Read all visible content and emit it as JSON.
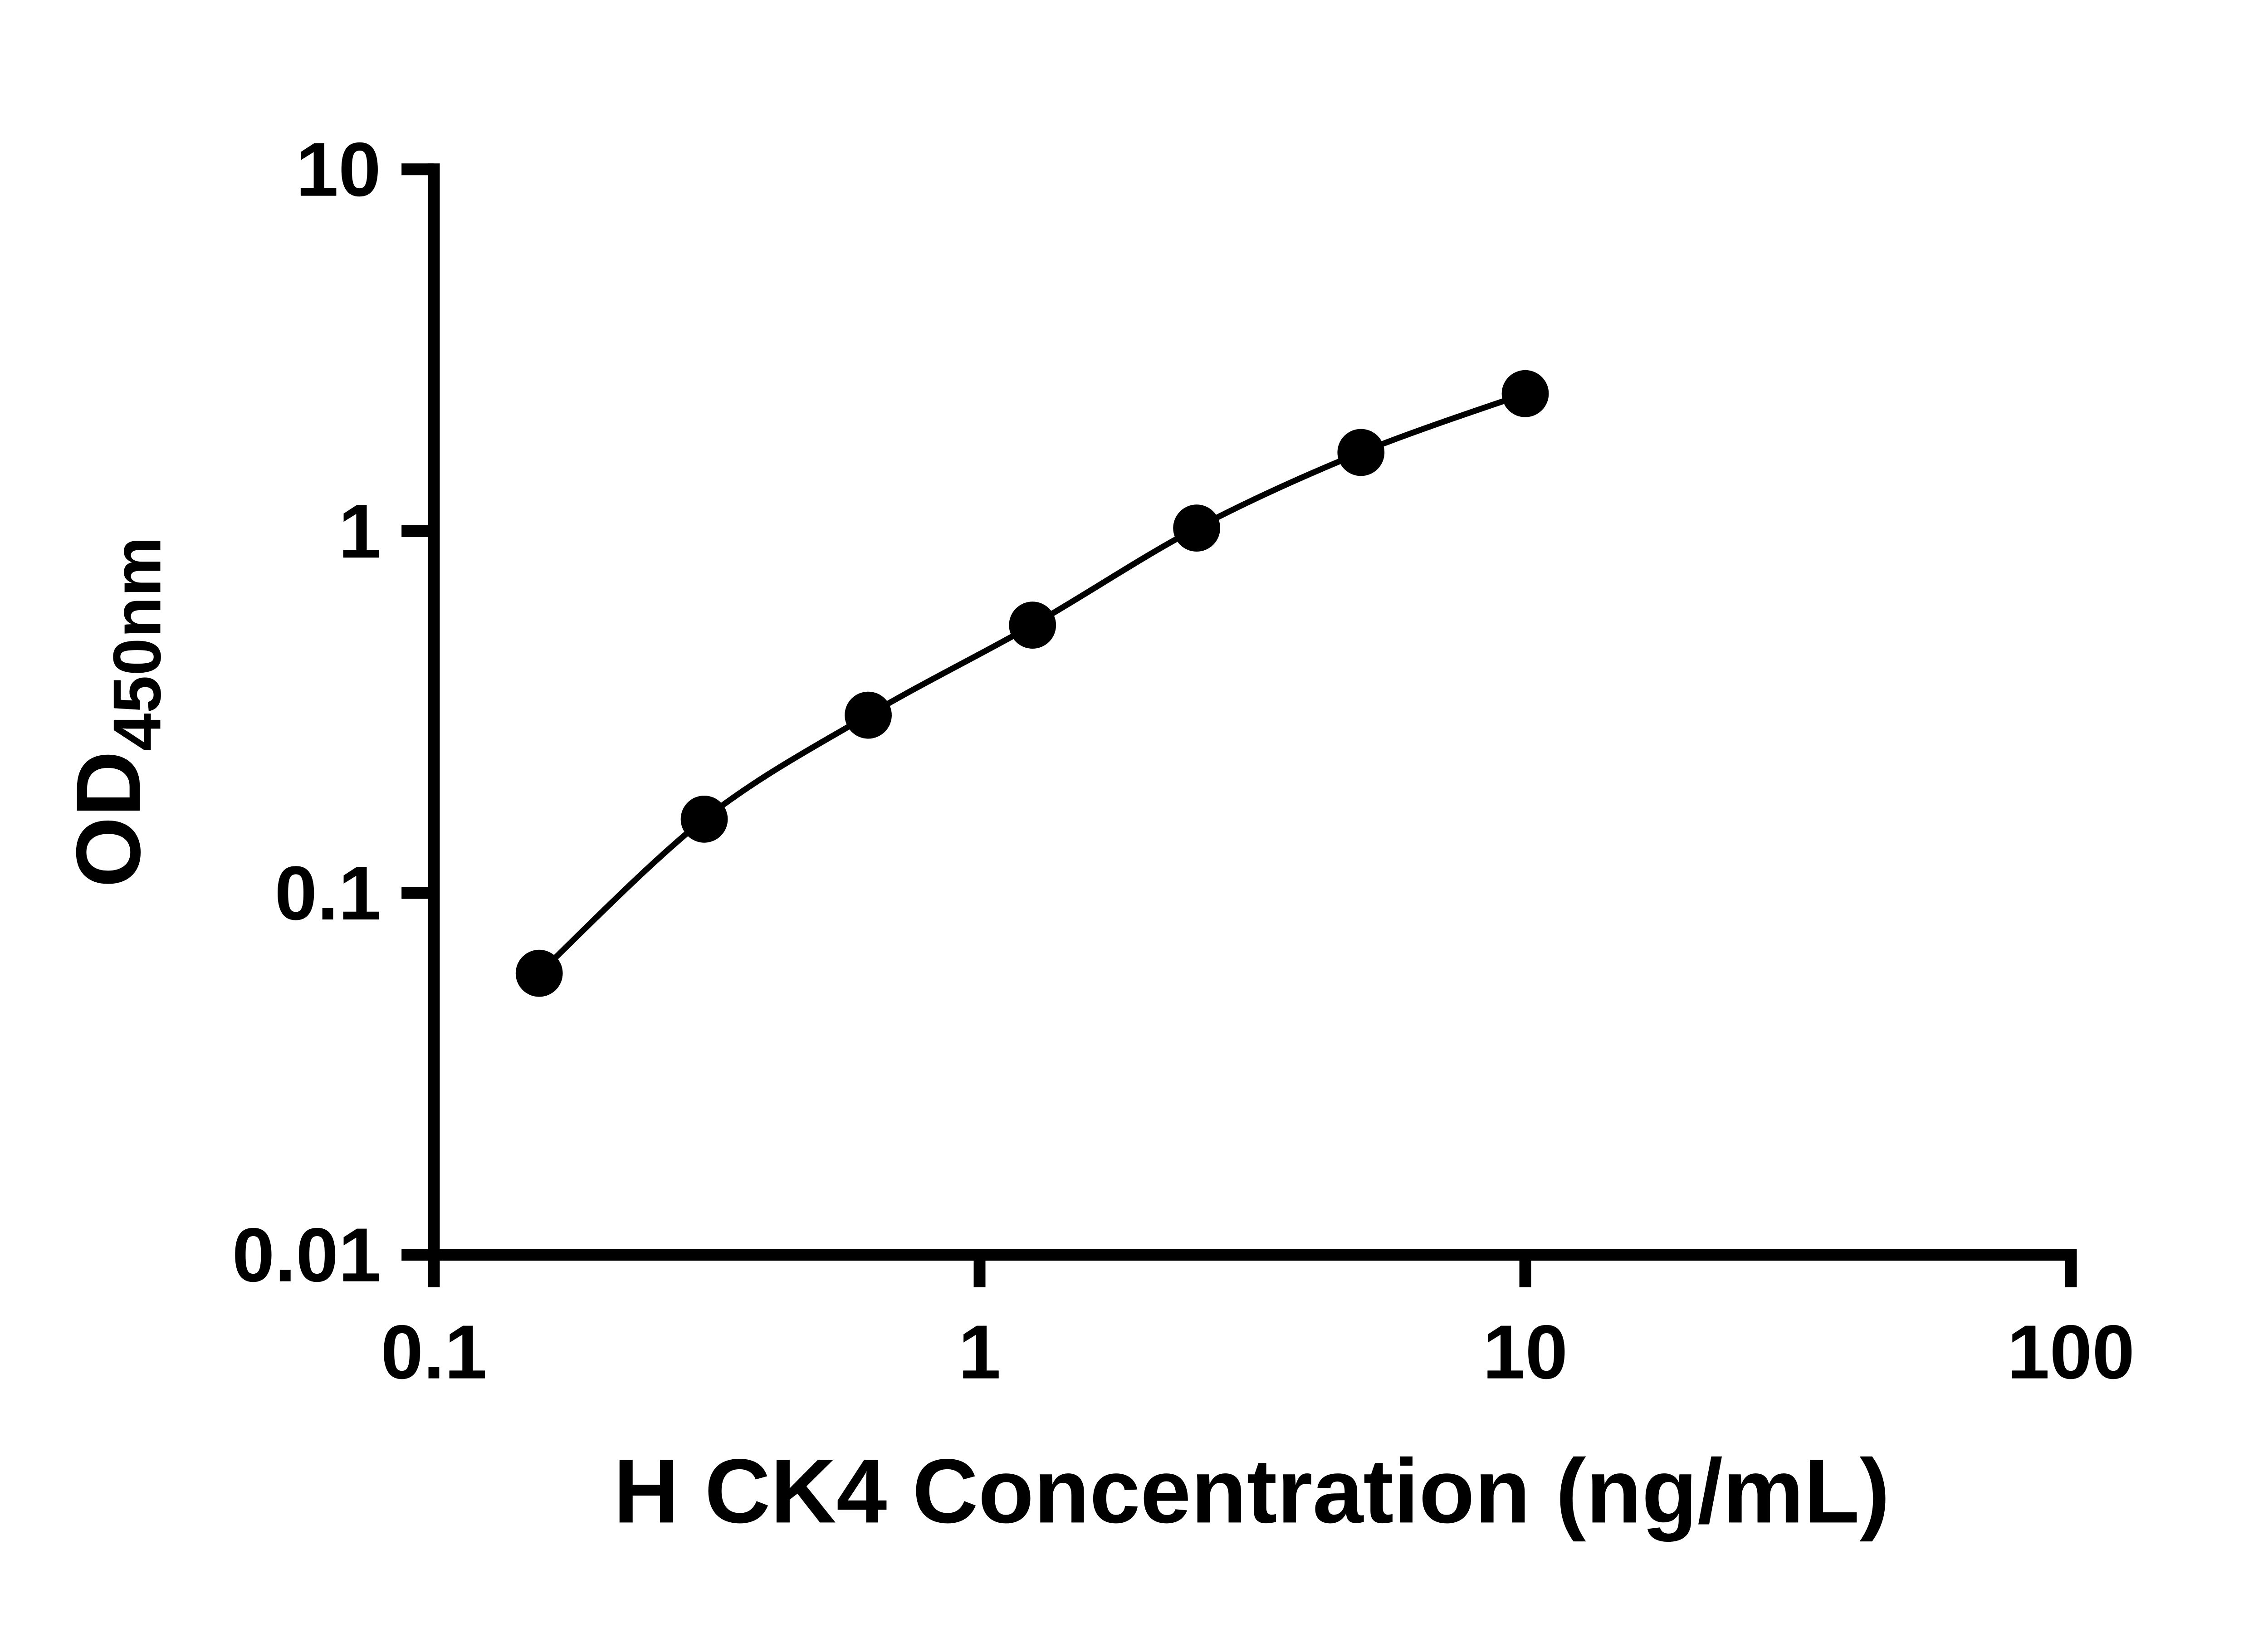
{
  "chart_data": {
    "type": "scatter",
    "subtype": "scatter-with-fitted-curve",
    "title": "",
    "xlabel": "H CK4 Concentration (ng/mL)",
    "ylabel_main": "OD",
    "ylabel_sub": "450nm",
    "x_scale": "log",
    "y_scale": "log",
    "xlim": [
      0.1,
      100
    ],
    "ylim": [
      0.01,
      10
    ],
    "x_ticks": [
      0.1,
      1,
      10,
      100
    ],
    "x_tick_labels": [
      "0.1",
      "1",
      "10",
      "100"
    ],
    "y_ticks": [
      0.01,
      0.1,
      1,
      10
    ],
    "y_tick_labels": [
      "0.01",
      "0.1",
      "1",
      "10"
    ],
    "x": [
      0.156,
      0.313,
      0.625,
      1.25,
      2.5,
      5,
      10
    ],
    "y": [
      0.06,
      0.16,
      0.31,
      0.55,
      1.02,
      1.65,
      2.4
    ],
    "grid": false,
    "legend": "none",
    "marker_color": "#000000",
    "line_color": "#000000",
    "axis_color": "#000000",
    "background": "#ffffff"
  }
}
